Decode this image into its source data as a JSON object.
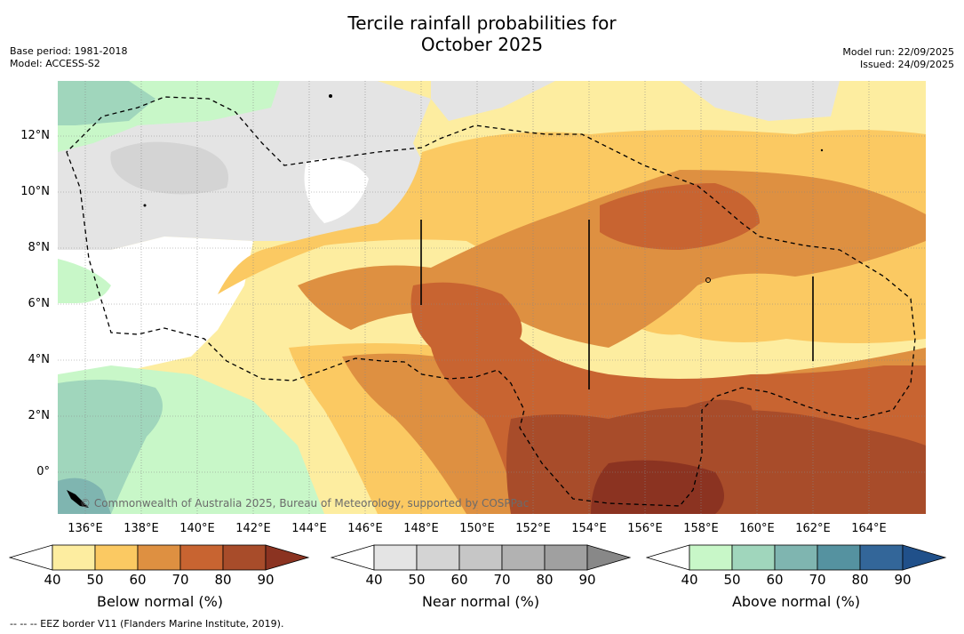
{
  "title_line1": "Tercile rainfall probabilities for",
  "title_line2": "October 2025",
  "meta_left": [
    "Base period: 1981-2018",
    "Model: ACCESS-S2"
  ],
  "meta_right": [
    "Model run: 22/09/2025",
    "Issued: 24/09/2025"
  ],
  "map": {
    "lon_labels": [
      "136°E",
      "138°E",
      "140°E",
      "142°E",
      "144°E",
      "146°E",
      "148°E",
      "150°E",
      "152°E",
      "154°E",
      "156°E",
      "158°E",
      "160°E",
      "162°E",
      "164°E"
    ],
    "lat_labels": [
      "12°N",
      "10°N",
      "8°N",
      "6°N",
      "4°N",
      "2°N",
      "0°"
    ],
    "copyright": "© Commonwealth of Australia 2025, Bureau of Meteorology, supported by COSPPac"
  },
  "colorbars": [
    {
      "name": "below",
      "label": "Below normal (%)",
      "ticks": [
        "40",
        "50",
        "60",
        "70",
        "80",
        "90"
      ],
      "colors": [
        "#ffffff",
        "#fdeda0",
        "#fbc962",
        "#de9041",
        "#c86431",
        "#a84c2a",
        "#8b3321"
      ]
    },
    {
      "name": "near",
      "label": "Near normal (%)",
      "ticks": [
        "40",
        "50",
        "60",
        "70",
        "80",
        "90"
      ],
      "colors": [
        "#ffffff",
        "#e4e4e4",
        "#d4d4d4",
        "#c6c6c6",
        "#b2b2b2",
        "#a0a0a0",
        "#888888"
      ]
    },
    {
      "name": "above",
      "label": "Above normal (%)",
      "ticks": [
        "40",
        "50",
        "60",
        "70",
        "80",
        "90"
      ],
      "colors": [
        "#ffffff",
        "#c8f7c8",
        "#a0d6bc",
        "#7fb5b0",
        "#5592a0",
        "#336699",
        "#20508a"
      ]
    }
  ],
  "footnote": "--  --  -- EEZ border V11 (Flanders Marine Institute, 2019)."
}
